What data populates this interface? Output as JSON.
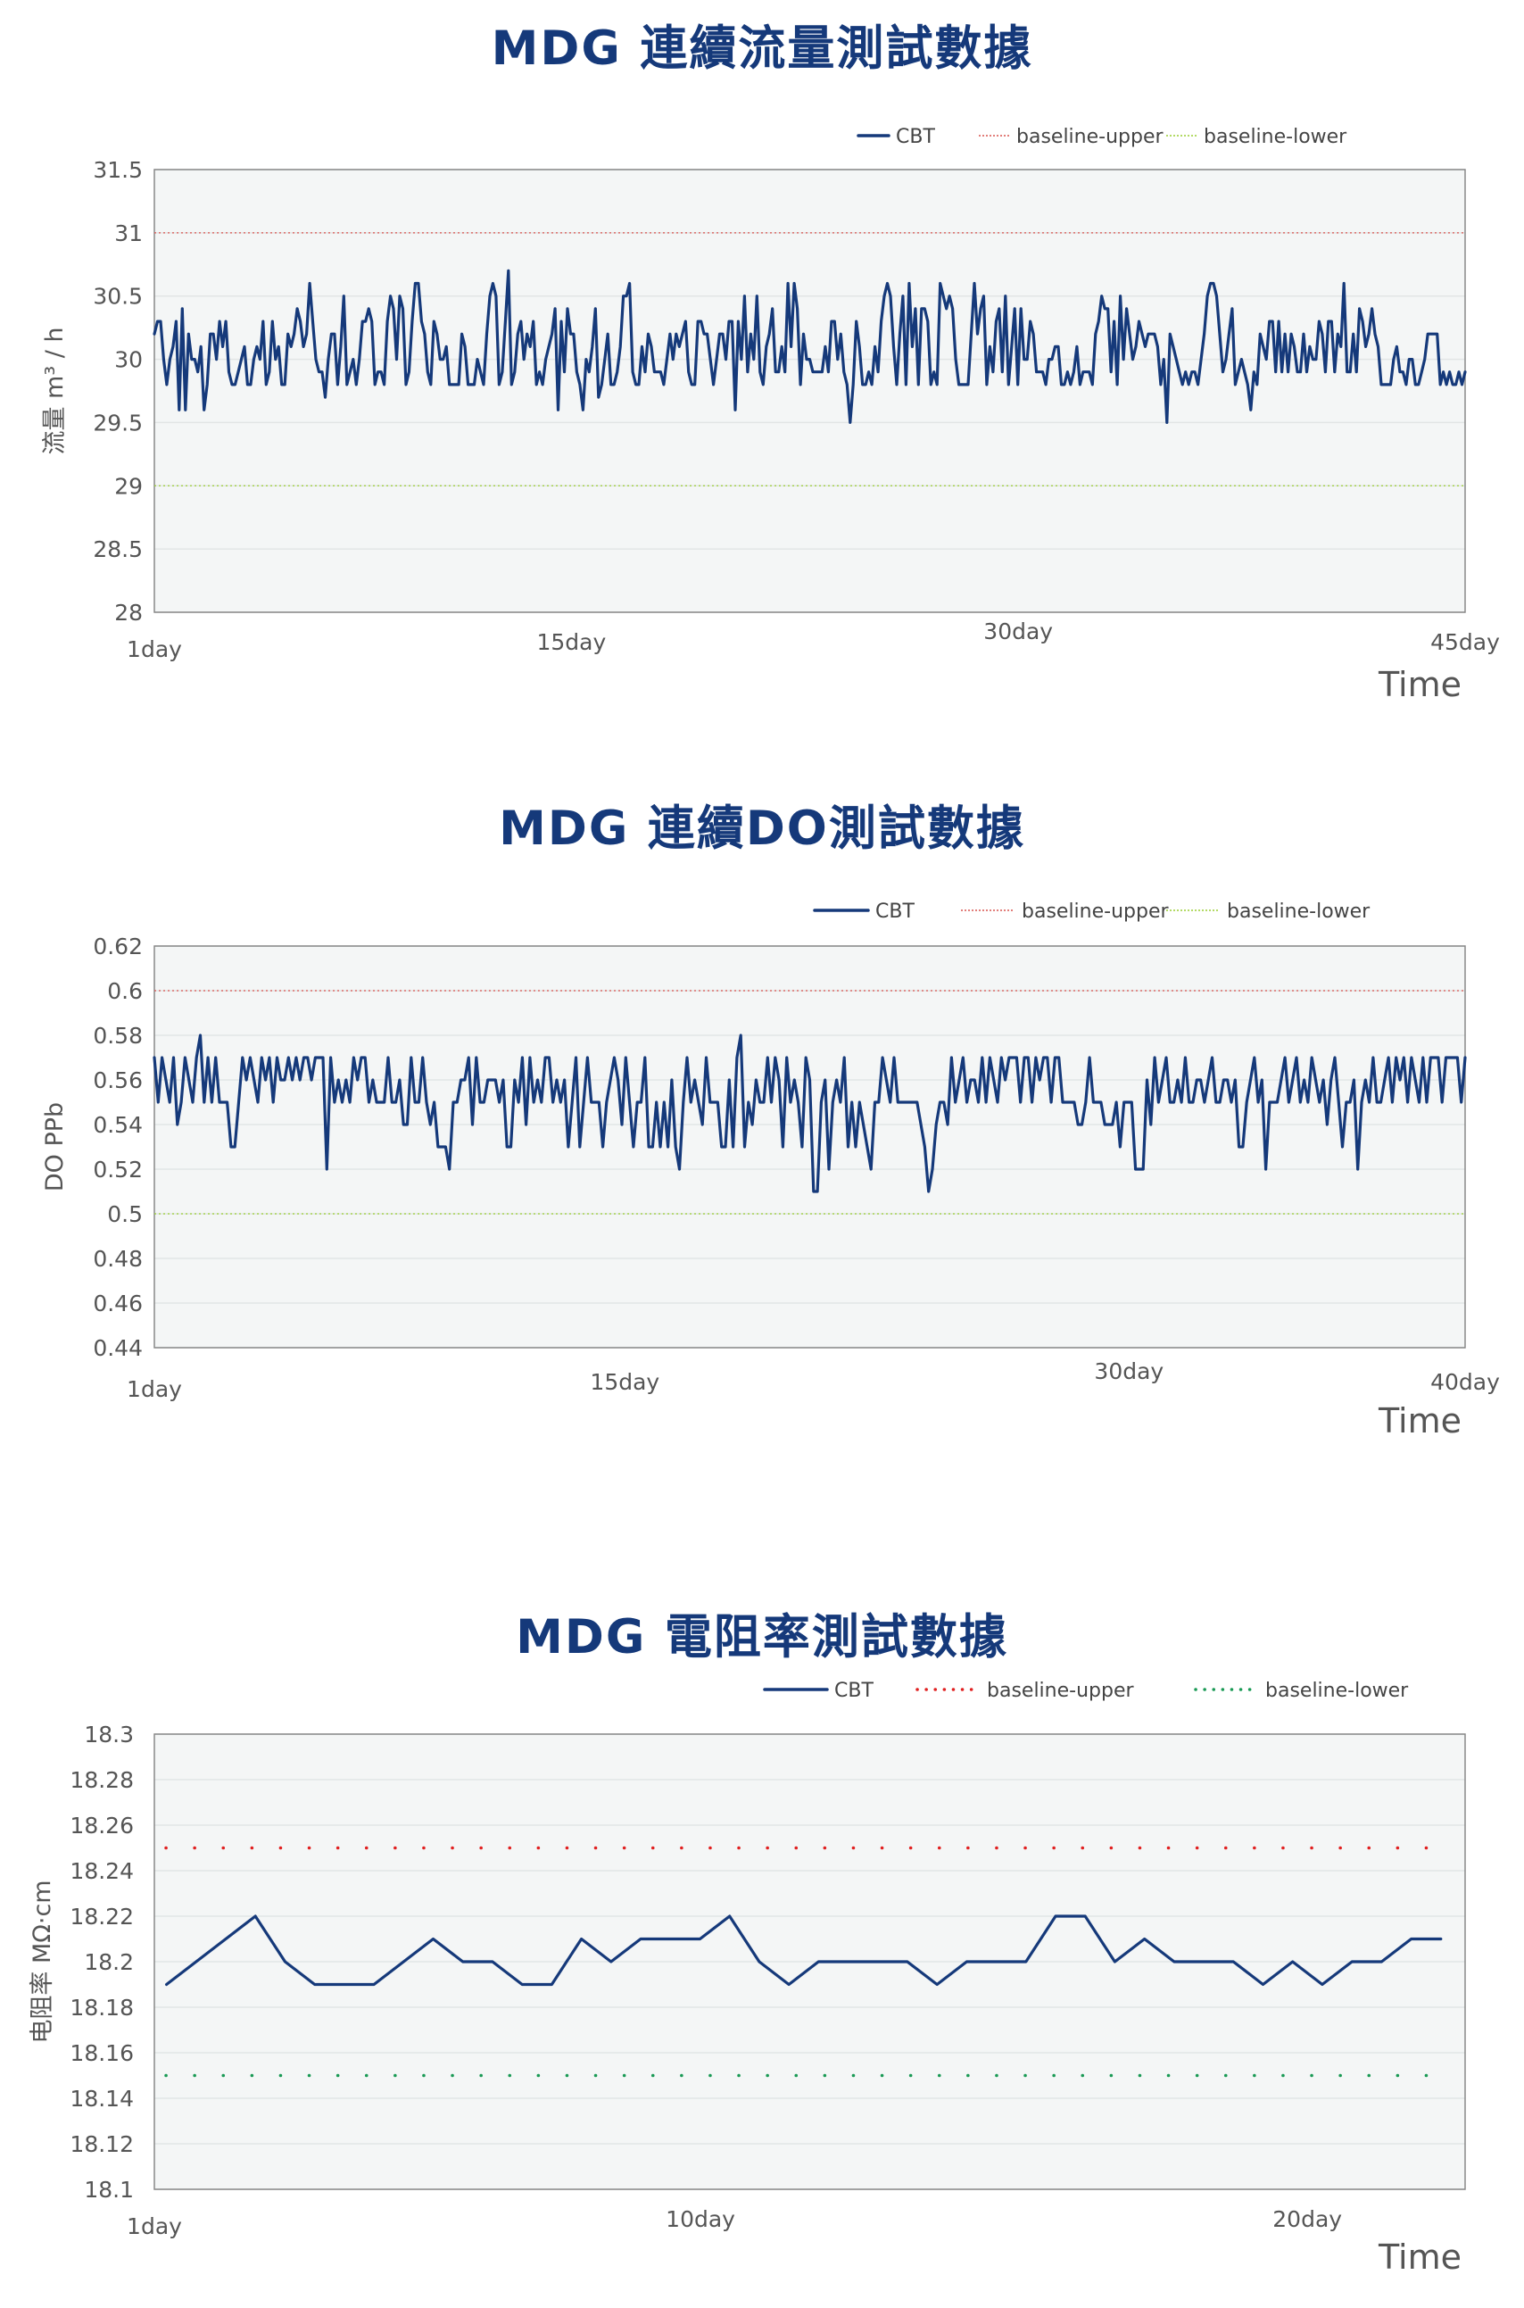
{
  "chart_data": [
    {
      "type": "line",
      "title": "MDG 連續流量測試數據",
      "ylabel": "流量  m³ / h",
      "xlabel": "Time",
      "ylim": [
        28,
        31.5
      ],
      "yticks": [
        "28",
        "28.5",
        "29",
        "29.5",
        "30",
        "30.5",
        "31",
        "31.5"
      ],
      "xlim": [
        1,
        45
      ],
      "xticks": [
        {
          "x": 1,
          "label": "1day"
        },
        {
          "x": 15,
          "label": "15day"
        },
        {
          "x": 30,
          "label": "30day"
        },
        {
          "x": 45,
          "label": "45day"
        }
      ],
      "legend_position": "top-right",
      "grid": true,
      "series": [
        {
          "name": "CBT",
          "color": "#15397a",
          "style": "solid",
          "x_start": 1,
          "x_end": 45,
          "values": [
            30.2,
            30.3,
            30.3,
            30.0,
            29.8,
            30.0,
            30.1,
            30.3,
            29.6,
            30.4,
            29.6,
            30.2,
            30.0,
            30.0,
            29.9,
            30.1,
            29.6,
            29.8,
            30.2,
            30.2,
            30.0,
            30.3,
            30.1,
            30.3,
            29.9,
            29.8,
            29.8,
            29.9,
            30.0,
            30.1,
            29.8,
            29.8,
            30.0,
            30.1,
            30.0,
            30.3,
            29.8,
            29.9,
            30.3,
            30.0,
            30.1,
            29.8,
            29.8,
            30.2,
            30.1,
            30.2,
            30.4,
            30.3,
            30.1,
            30.2,
            30.6,
            30.3,
            30.0,
            29.9,
            29.9,
            29.7,
            30.0,
            30.2,
            30.2,
            29.8,
            30.1,
            30.5,
            29.8,
            29.9,
            30.0,
            29.8,
            30.0,
            30.3,
            30.3,
            30.4,
            30.3,
            29.8,
            29.9,
            29.9,
            29.8,
            30.3,
            30.5,
            30.4,
            30.0,
            30.5,
            30.4,
            29.8,
            29.9,
            30.3,
            30.6,
            30.6,
            30.3,
            30.2,
            29.9,
            29.8,
            30.3,
            30.2,
            30.0,
            30.0,
            30.1,
            29.8,
            29.8,
            29.8,
            29.8,
            30.2,
            30.1,
            29.8,
            29.8,
            29.8,
            30.0,
            29.9,
            29.8,
            30.2,
            30.5,
            30.6,
            30.5,
            29.8,
            29.9,
            30.3,
            30.7,
            29.8,
            29.9,
            30.2,
            30.3,
            30.0,
            30.2,
            30.1,
            30.3,
            29.8,
            29.9,
            29.8,
            30.0,
            30.1,
            30.2,
            30.4,
            29.6,
            30.3,
            29.9,
            30.4,
            30.2,
            30.2,
            29.9,
            29.8,
            29.6,
            30.0,
            29.9,
            30.1,
            30.4,
            29.7,
            29.8,
            30.0,
            30.2,
            29.8,
            29.8,
            29.9,
            30.1,
            30.5,
            30.5,
            30.6,
            29.9,
            29.8,
            29.8,
            30.1,
            29.9,
            30.2,
            30.1,
            29.9,
            29.9,
            29.9,
            29.8,
            30.0,
            30.2,
            30.0,
            30.2,
            30.1,
            30.2,
            30.3,
            29.9,
            29.8,
            29.8,
            30.3,
            30.3,
            30.2,
            30.2,
            30.0,
            29.8,
            30.0,
            30.2,
            30.2,
            30.0,
            30.3,
            30.3,
            29.6,
            30.3,
            30.0,
            30.5,
            29.9,
            30.2,
            30.0,
            30.5,
            29.9,
            29.8,
            30.1,
            30.2,
            30.4,
            29.9,
            29.9,
            30.1,
            29.9,
            30.6,
            30.1,
            30.6,
            30.4,
            29.8,
            30.2,
            30.0,
            30.0,
            29.9,
            29.9,
            29.9,
            29.9,
            30.1,
            29.9,
            30.3,
            30.3,
            30.0,
            30.2,
            29.9,
            29.8,
            29.5,
            29.8,
            30.3,
            30.1,
            29.8,
            29.8,
            29.9,
            29.8,
            30.1,
            29.9,
            30.3,
            30.5,
            30.6,
            30.5,
            30.1,
            29.8,
            30.2,
            30.5,
            29.8,
            30.6,
            30.1,
            30.4,
            29.8,
            30.4,
            30.4,
            30.3,
            29.8,
            29.9,
            29.8,
            30.6,
            30.5,
            30.4,
            30.5,
            30.4,
            30.0,
            29.8,
            29.8,
            29.8,
            29.8,
            30.2,
            30.6,
            30.2,
            30.4,
            30.5,
            29.8,
            30.1,
            29.9,
            30.3,
            30.4,
            29.9,
            30.5,
            29.8,
            30.1,
            30.4,
            29.8,
            30.4,
            30.0,
            30.0,
            30.3,
            30.2,
            29.9,
            29.9,
            29.9,
            29.8,
            30.0,
            30.0,
            30.1,
            30.1,
            29.8,
            29.8,
            29.9,
            29.8,
            29.9,
            30.1,
            29.8,
            29.9,
            29.9,
            29.9,
            29.8,
            30.2,
            30.3,
            30.5,
            30.4,
            30.4,
            29.9,
            30.3,
            29.8,
            30.5,
            30.0,
            30.4,
            30.2,
            30.0,
            30.1,
            30.3,
            30.2,
            30.1,
            30.2,
            30.2,
            30.2,
            30.1,
            29.8,
            30.0,
            29.5,
            30.2,
            30.1,
            30.0,
            29.9,
            29.8,
            29.9,
            29.8,
            29.9,
            29.9,
            29.8,
            30.0,
            30.2,
            30.5,
            30.6,
            30.6,
            30.5,
            30.2,
            29.9,
            30.0,
            30.2,
            30.4,
            29.8,
            29.9,
            30.0,
            29.9,
            29.8,
            29.6,
            29.9,
            29.8,
            30.2,
            30.1,
            30.0,
            30.3,
            30.3,
            29.9,
            30.3,
            29.9,
            30.2,
            29.9,
            30.2,
            30.1,
            29.9,
            29.9,
            30.2,
            29.9,
            30.1,
            30.0,
            30.0,
            30.3,
            30.2,
            29.9,
            30.3,
            30.3,
            29.9,
            30.2,
            30.1,
            30.6,
            29.9,
            29.9,
            30.2,
            29.9,
            30.4,
            30.3,
            30.1,
            30.2,
            30.4,
            30.2,
            30.1,
            29.8,
            29.8,
            29.8,
            29.8,
            30.0,
            30.1,
            29.9,
            29.9,
            29.8,
            30.0,
            30.0,
            29.8,
            29.8,
            29.9,
            30.0,
            30.2,
            30.2,
            30.2,
            30.2,
            29.8,
            29.9,
            29.8,
            29.9,
            29.8,
            29.8,
            29.9,
            29.8,
            29.9
          ]
        },
        {
          "name": "baseline-upper",
          "color": "#d9534f",
          "style": "dotted-thin",
          "constant": 31
        },
        {
          "name": "baseline-lower",
          "color": "#9acd32",
          "style": "dotted-thin",
          "constant": 29
        }
      ]
    },
    {
      "type": "line",
      "title": "MDG 連續DO測試數據",
      "ylabel": "DO  PPb",
      "xlabel": "Time",
      "ylim": [
        0.44,
        0.62
      ],
      "yticks": [
        "0.44",
        "0.46",
        "0.48",
        "0.5",
        "0.52",
        "0.54",
        "0.56",
        "0.58",
        "0.6",
        "0.62"
      ],
      "xlim": [
        1,
        40
      ],
      "xticks": [
        {
          "x": 1,
          "label": "1day"
        },
        {
          "x": 15,
          "label": "15day"
        },
        {
          "x": 30,
          "label": "30day"
        },
        {
          "x": 40,
          "label": "40day"
        }
      ],
      "legend_position": "top-right",
      "grid": true,
      "series": [
        {
          "name": "CBT",
          "color": "#15397a",
          "style": "solid",
          "x_start": 1,
          "x_end": 40,
          "values": [
            0.57,
            0.55,
            0.57,
            0.56,
            0.55,
            0.57,
            0.54,
            0.55,
            0.57,
            0.56,
            0.55,
            0.57,
            0.58,
            0.55,
            0.57,
            0.55,
            0.57,
            0.55,
            0.55,
            0.55,
            0.53,
            0.53,
            0.55,
            0.57,
            0.56,
            0.57,
            0.56,
            0.55,
            0.57,
            0.56,
            0.57,
            0.55,
            0.57,
            0.56,
            0.56,
            0.57,
            0.56,
            0.57,
            0.56,
            0.57,
            0.57,
            0.56,
            0.57,
            0.57,
            0.57,
            0.52,
            0.57,
            0.55,
            0.56,
            0.55,
            0.56,
            0.55,
            0.57,
            0.56,
            0.57,
            0.57,
            0.55,
            0.56,
            0.55,
            0.55,
            0.55,
            0.57,
            0.55,
            0.55,
            0.56,
            0.54,
            0.54,
            0.57,
            0.55,
            0.55,
            0.57,
            0.55,
            0.54,
            0.55,
            0.53,
            0.53,
            0.53,
            0.52,
            0.55,
            0.55,
            0.56,
            0.56,
            0.57,
            0.54,
            0.57,
            0.55,
            0.55,
            0.56,
            0.56,
            0.56,
            0.55,
            0.56,
            0.53,
            0.53,
            0.56,
            0.55,
            0.57,
            0.54,
            0.57,
            0.55,
            0.56,
            0.55,
            0.57,
            0.57,
            0.55,
            0.56,
            0.55,
            0.56,
            0.53,
            0.55,
            0.57,
            0.53,
            0.55,
            0.57,
            0.55,
            0.55,
            0.55,
            0.53,
            0.55,
            0.56,
            0.57,
            0.56,
            0.54,
            0.57,
            0.55,
            0.53,
            0.55,
            0.55,
            0.57,
            0.53,
            0.53,
            0.55,
            0.53,
            0.55,
            0.53,
            0.56,
            0.53,
            0.52,
            0.55,
            0.57,
            0.55,
            0.56,
            0.55,
            0.54,
            0.57,
            0.55,
            0.55,
            0.55,
            0.53,
            0.53,
            0.56,
            0.53,
            0.57,
            0.58,
            0.53,
            0.55,
            0.54,
            0.56,
            0.55,
            0.55,
            0.57,
            0.55,
            0.57,
            0.56,
            0.53,
            0.57,
            0.55,
            0.56,
            0.55,
            0.53,
            0.57,
            0.56,
            0.51,
            0.51,
            0.55,
            0.56,
            0.52,
            0.55,
            0.56,
            0.55,
            0.57,
            0.53,
            0.55,
            0.53,
            0.55,
            0.54,
            0.53,
            0.52,
            0.55,
            0.55,
            0.57,
            0.56,
            0.55,
            0.57,
            0.55,
            0.55,
            0.55,
            0.55,
            0.55,
            0.55,
            0.54,
            0.53,
            0.51,
            0.52,
            0.54,
            0.55,
            0.55,
            0.54,
            0.57,
            0.55,
            0.56,
            0.57,
            0.55,
            0.56,
            0.56,
            0.55,
            0.57,
            0.55,
            0.57,
            0.56,
            0.55,
            0.57,
            0.56,
            0.57,
            0.57,
            0.57,
            0.55,
            0.57,
            0.57,
            0.55,
            0.57,
            0.56,
            0.57,
            0.57,
            0.55,
            0.57,
            0.57,
            0.55,
            0.55,
            0.55,
            0.55,
            0.54,
            0.54,
            0.55,
            0.57,
            0.55,
            0.55,
            0.55,
            0.54,
            0.54,
            0.54,
            0.55,
            0.53,
            0.55,
            0.55,
            0.55,
            0.52,
            0.52,
            0.52,
            0.56,
            0.54,
            0.57,
            0.55,
            0.56,
            0.57,
            0.55,
            0.55,
            0.56,
            0.55,
            0.57,
            0.55,
            0.55,
            0.56,
            0.56,
            0.55,
            0.56,
            0.57,
            0.55,
            0.55,
            0.56,
            0.56,
            0.55,
            0.56,
            0.53,
            0.53,
            0.55,
            0.56,
            0.57,
            0.55,
            0.56,
            0.52,
            0.55,
            0.55,
            0.55,
            0.56,
            0.57,
            0.55,
            0.56,
            0.57,
            0.55,
            0.56,
            0.55,
            0.57,
            0.56,
            0.55,
            0.56,
            0.54,
            0.56,
            0.57,
            0.55,
            0.53,
            0.55,
            0.55,
            0.56,
            0.52,
            0.55,
            0.56,
            0.55,
            0.57,
            0.55,
            0.55,
            0.56,
            0.57,
            0.55,
            0.57,
            0.56,
            0.57,
            0.55,
            0.57,
            0.56,
            0.55,
            0.57,
            0.55,
            0.57,
            0.57,
            0.57,
            0.55,
            0.57,
            0.57,
            0.57,
            0.57,
            0.55,
            0.57
          ]
        },
        {
          "name": "baseline-upper",
          "color": "#d9534f",
          "style": "dotted-thin",
          "constant": 0.6
        },
        {
          "name": "baseline-lower",
          "color": "#9acd32",
          "style": "dotted-thin",
          "constant": 0.5
        }
      ]
    },
    {
      "type": "line",
      "title": "MDG 電阻率測試數據",
      "ylabel": "电阻率   MΩ·cm",
      "xlabel": "Time",
      "ylim": [
        18.1,
        18.3
      ],
      "yticks": [
        "18.1",
        "18.12",
        "18.14",
        "18.16",
        "18.18",
        "18.2",
        "18.22",
        "18.24",
        "18.26",
        "18.28",
        "18.3"
      ],
      "xlim": [
        1,
        22.6
      ],
      "xticks": [
        {
          "x": 1,
          "label": "1day"
        },
        {
          "x": 10,
          "label": "10day"
        },
        {
          "x": 20,
          "label": "20day"
        }
      ],
      "legend_position": "top-right",
      "grid": true,
      "series": [
        {
          "name": "CBT",
          "color": "#15397a",
          "style": "solid",
          "x_start": 1.2,
          "x_end": 22.2,
          "values": [
            18.19,
            18.2,
            18.21,
            18.22,
            18.2,
            18.19,
            18.19,
            18.19,
            18.2,
            18.21,
            18.2,
            18.2,
            18.19,
            18.19,
            18.21,
            18.2,
            18.21,
            18.21,
            18.21,
            18.22,
            18.2,
            18.19,
            18.2,
            18.2,
            18.2,
            18.2,
            18.19,
            18.2,
            18.2,
            18.2,
            18.22,
            18.22,
            18.2,
            18.21,
            18.2,
            18.2,
            18.2,
            18.19,
            18.2,
            18.19,
            18.2,
            18.2,
            18.21,
            18.21
          ]
        },
        {
          "name": "baseline-upper",
          "color": "#e02020",
          "style": "dotted-bold",
          "constant": 18.25
        },
        {
          "name": "baseline-lower",
          "color": "#1a9a55",
          "style": "dotted-bold",
          "constant": 18.15
        }
      ]
    }
  ]
}
